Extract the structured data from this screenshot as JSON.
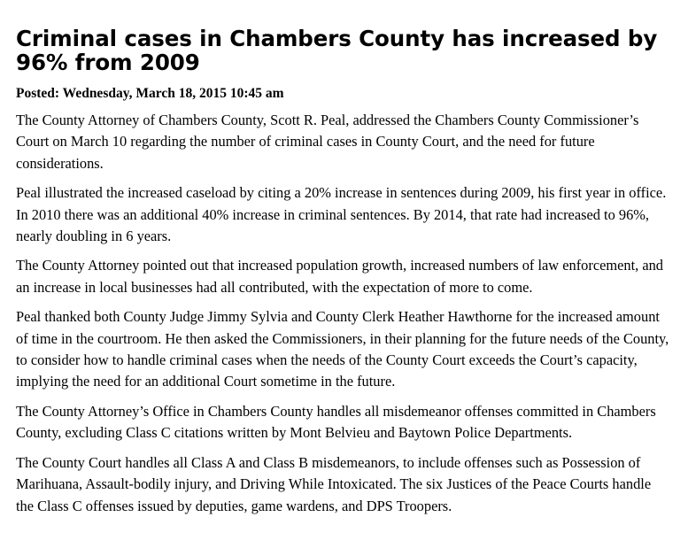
{
  "article": {
    "headline": "Criminal cases in Chambers County has increased by 96% from 2009",
    "posted": "Posted: Wednesday, March 18, 2015 10:45 am",
    "paragraphs": [
      "The County Attorney of Chambers County, Scott R. Peal, addressed the Chambers County Commissioner’s Court on March 10 regarding the number of criminal cases in County Court, and the need for future considerations.",
      "Peal illustrated the increased caseload by citing a 20% increase in sentences during 2009, his first year in office. In 2010 there was an additional 40% increase in criminal sentences. By 2014, that rate had increased to 96%, nearly doubling in 6 years.",
      "The County Attorney pointed out that increased population growth, increased numbers of law enforcement, and an increase in local businesses had all contributed, with the expectation of more to come.",
      "Peal thanked both County Judge Jimmy Sylvia and County Clerk Heather Hawthorne for the increased amount of time in the courtroom. He then asked the Commissioners, in their planning for the future needs of the County, to consider how to handle criminal cases when the needs of the County Court exceeds the Court’s capacity, implying the need for an additional Court sometime in the future.",
      "The County Attorney’s Office in Chambers County handles all misdemeanor offenses committed in Chambers County, excluding Class C citations written by Mont Belvieu and Baytown Police Departments.",
      "The County Court handles all Class A and Class B misdemeanors, to include offenses such as Possession of Marihuana, Assault-bodily injury, and Driving While Intoxicated. The six Justices of the Peace Courts handle the Class C offenses issued by deputies, game wardens, and DPS Troopers."
    ]
  }
}
